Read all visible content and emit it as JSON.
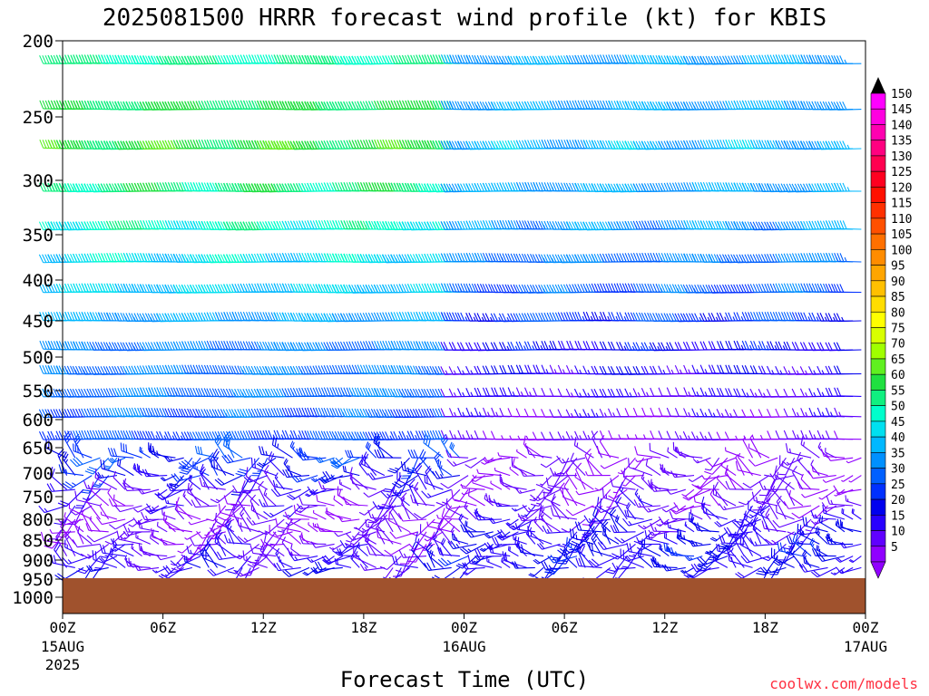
{
  "chart_data": {
    "type": "wind_barbs",
    "title": "2025081500 HRRR forecast wind profile (kt) for KBIS",
    "xlabel": "Forecast Time (UTC)",
    "ylabel": "",
    "credit": "coolwx.com/models",
    "y_axis": {
      "scale": "pressure (hPa), decreasing upward",
      "ticks": [
        200,
        250,
        300,
        350,
        400,
        450,
        500,
        550,
        600,
        650,
        700,
        750,
        800,
        850,
        900,
        950,
        1000
      ],
      "labels": [
        "200",
        "250",
        "300",
        "350",
        "400",
        "450",
        "500",
        "550",
        "600",
        "650",
        "700",
        "750",
        "800",
        "850",
        "900",
        "950",
        "1000"
      ],
      "ylim": [
        1025,
        200
      ]
    },
    "x_axis": {
      "range_hours": [
        0,
        48
      ],
      "ticks": [
        {
          "hour": 0,
          "label": "00Z",
          "sub1": "15AUG",
          "sub2": "2025"
        },
        {
          "hour": 6,
          "label": "06Z",
          "sub1": "",
          "sub2": ""
        },
        {
          "hour": 12,
          "label": "12Z",
          "sub1": "",
          "sub2": ""
        },
        {
          "hour": 18,
          "label": "18Z",
          "sub1": "",
          "sub2": ""
        },
        {
          "hour": 24,
          "label": "00Z",
          "sub1": "16AUG",
          "sub2": ""
        },
        {
          "hour": 30,
          "label": "06Z",
          "sub1": "",
          "sub2": ""
        },
        {
          "hour": 36,
          "label": "12Z",
          "sub1": "",
          "sub2": ""
        },
        {
          "hour": 42,
          "label": "18Z",
          "sub1": "",
          "sub2": ""
        },
        {
          "hour": 48,
          "label": "00Z",
          "sub1": "17AUG",
          "sub2": ""
        }
      ]
    },
    "colorbar": {
      "levels": [
        150,
        145,
        140,
        135,
        130,
        125,
        120,
        115,
        110,
        105,
        100,
        95,
        90,
        85,
        80,
        75,
        70,
        65,
        60,
        55,
        50,
        45,
        40,
        35,
        30,
        25,
        20,
        15,
        10,
        5
      ],
      "labels": [
        "150",
        "145",
        "140",
        "135",
        "130",
        "125",
        "120",
        "115",
        "110",
        "105",
        "100",
        "95",
        "90",
        "85",
        "80",
        "75",
        "70",
        "65",
        "60",
        "55",
        "50",
        "45",
        "40",
        "35",
        "30",
        "25",
        "20",
        "15",
        "10",
        "5"
      ],
      "colors": [
        "#ff00ff",
        "#ff00e0",
        "#ff00b0",
        "#ff0080",
        "#ff0050",
        "#ff0020",
        "#ff1000",
        "#ff3000",
        "#ff5000",
        "#ff7000",
        "#ff8c00",
        "#ffa500",
        "#ffc000",
        "#ffdd00",
        "#ffff00",
        "#d8ff00",
        "#a0ff00",
        "#60f020",
        "#20e040",
        "#10f080",
        "#00ffcc",
        "#00e0f0",
        "#00b8ff",
        "#0090ff",
        "#0060ff",
        "#0030ff",
        "#0000ee",
        "#2800ff",
        "#6000ff",
        "#9000ff"
      ]
    },
    "ground_color": "#a0522d",
    "levels_hpa": [
      215,
      245,
      275,
      310,
      345,
      380,
      415,
      450,
      490,
      525,
      560,
      595,
      635,
      670,
      705,
      735,
      770,
      800,
      830,
      860,
      890,
      920,
      950,
      975,
      1000
    ],
    "speed_profile_kt": [
      {
        "p": 215,
        "spd_0_24": 55,
        "spd_24_48": 40
      },
      {
        "p": 245,
        "spd_0_24": 60,
        "spd_24_48": 40
      },
      {
        "p": 275,
        "spd_0_24": 62,
        "spd_24_48": 42
      },
      {
        "p": 310,
        "spd_0_24": 58,
        "spd_24_48": 40
      },
      {
        "p": 345,
        "spd_0_24": 52,
        "spd_24_48": 38
      },
      {
        "p": 380,
        "spd_0_24": 48,
        "spd_24_48": 35
      },
      {
        "p": 415,
        "spd_0_24": 45,
        "spd_24_48": 32
      },
      {
        "p": 450,
        "spd_0_24": 40,
        "spd_24_48": 28
      },
      {
        "p": 490,
        "spd_0_24": 36,
        "spd_24_48": 22
      },
      {
        "p": 525,
        "spd_0_24": 35,
        "spd_24_48": 18
      },
      {
        "p": 560,
        "spd_0_24": 34,
        "spd_24_48": 15
      },
      {
        "p": 595,
        "spd_0_24": 32,
        "spd_24_48": 12
      },
      {
        "p": 635,
        "spd_0_24": 30,
        "spd_24_48": 10
      },
      {
        "p": 670,
        "spd_0_24": 28,
        "spd_24_48": 10
      },
      {
        "p": 705,
        "spd_0_24": 22,
        "spd_24_48": 10
      },
      {
        "p": 735,
        "spd_0_24": 15,
        "spd_24_48": 10
      },
      {
        "p": 770,
        "spd_0_24": 12,
        "spd_24_48": 12
      },
      {
        "p": 800,
        "spd_0_24": 10,
        "spd_24_48": 15
      },
      {
        "p": 830,
        "spd_0_24": 10,
        "spd_24_48": 18
      },
      {
        "p": 860,
        "spd_0_24": 12,
        "spd_24_48": 20
      },
      {
        "p": 890,
        "spd_0_24": 15,
        "spd_24_48": 22
      },
      {
        "p": 920,
        "spd_0_24": 18,
        "spd_24_48": 20
      },
      {
        "p": 950,
        "spd_0_24": 15,
        "spd_24_48": 15
      },
      {
        "p": 975,
        "spd_0_24": 10,
        "spd_24_48": 10
      },
      {
        "p": 1000,
        "spd_0_24": 5,
        "spd_24_48": 5
      }
    ]
  }
}
